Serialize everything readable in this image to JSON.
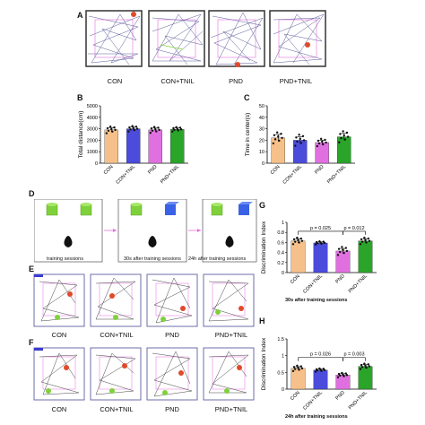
{
  "panel_letters": {
    "A": "A",
    "B": "B",
    "C": "C",
    "D": "D",
    "E": "E",
    "F": "F",
    "G": "G",
    "H": "H"
  },
  "groups": [
    "CON",
    "CON+TNIL",
    "PND",
    "PND+TNIL"
  ],
  "colors": {
    "CON": "#f6c08a",
    "CON+TNIL": "#4b4bdc",
    "PND": "#e070e0",
    "PND+TNIL": "#2aa52a",
    "track": "#5a5a9a",
    "arena": "#6e6ea8",
    "object_green": "#7fd13b",
    "object_blue": "#3a62e6",
    "pink": "#e86ee0",
    "mouse_dot": "#e04a2a"
  },
  "panel_D": {
    "sessions": [
      "training sessions",
      "30s after training sessions",
      "24h after training sessions"
    ]
  },
  "panel_G": {
    "xlabel": "30s after  training sessions"
  },
  "panel_H": {
    "xlabel": "24h after  training sessions"
  },
  "chart_data": [
    {
      "panel": "B",
      "type": "bar",
      "categories": [
        "CON",
        "CON+TNIL",
        "PND",
        "PND+TNIL"
      ],
      "values": [
        2900,
        3000,
        2900,
        2950
      ],
      "errors": [
        180,
        150,
        160,
        120
      ],
      "ylabel": "Total distance(cm)",
      "ylim": [
        0,
        5000
      ],
      "yticks": [
        0,
        1000,
        2000,
        3000,
        4000,
        5000
      ]
    },
    {
      "panel": "C",
      "type": "bar",
      "categories": [
        "CON",
        "CON+TNIL",
        "PND",
        "PND+TNIL"
      ],
      "values": [
        22,
        20,
        18,
        23
      ],
      "errors": [
        3,
        3,
        2,
        3
      ],
      "ylabel": "Time in center(s)",
      "ylim": [
        0,
        50
      ],
      "yticks": [
        0,
        10,
        20,
        30,
        40,
        50
      ]
    },
    {
      "panel": "G",
      "type": "bar",
      "categories": [
        "CON",
        "CON+TNIL",
        "PND",
        "PND+TNIL"
      ],
      "values": [
        0.63,
        0.59,
        0.43,
        0.63
      ],
      "errors": [
        0.04,
        0.02,
        0.05,
        0.04
      ],
      "ylabel": "Discrimination Index",
      "ylim": [
        0,
        1.0
      ],
      "yticks": [
        0,
        0.2,
        0.4,
        0.6,
        0.8,
        1.0
      ],
      "annotations": [
        {
          "text": "p = 0.025",
          "from": 0,
          "to": 2
        },
        {
          "text": "p = 0.012",
          "from": 2,
          "to": 3
        }
      ]
    },
    {
      "panel": "H",
      "type": "bar",
      "categories": [
        "CON",
        "CON+TNIL",
        "PND",
        "PND+TNIL"
      ],
      "values": [
        0.62,
        0.57,
        0.42,
        0.68
      ],
      "errors": [
        0.05,
        0.03,
        0.04,
        0.05
      ],
      "ylabel": "Discrimination Index",
      "ylim": [
        0,
        1.5
      ],
      "yticks": [
        0,
        0.5,
        1.0,
        1.5
      ],
      "annotations": [
        {
          "text": "p = 0.026",
          "from": 0,
          "to": 2
        },
        {
          "text": "p = 0.003",
          "from": 2,
          "to": 3
        }
      ]
    }
  ]
}
